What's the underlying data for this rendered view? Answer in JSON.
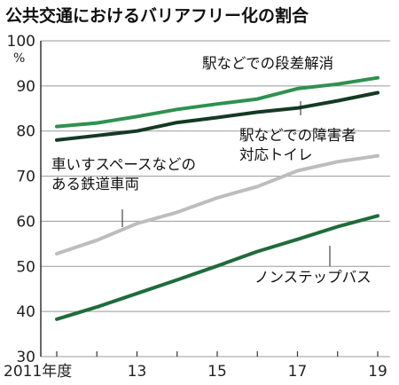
{
  "chart_data": {
    "type": "line",
    "title": "公共交通におけるバリアフリー化の割合",
    "unit_label": "%",
    "ylim": [
      30,
      100
    ],
    "y_ticks": [
      100,
      90,
      80,
      70,
      60,
      50,
      40,
      30
    ],
    "x": [
      2011,
      2012,
      2013,
      2014,
      2015,
      2016,
      2017,
      2018,
      2019
    ],
    "x_tick_labels": [
      {
        "x": 2011,
        "label": "2011年度"
      },
      {
        "x": 2013,
        "label": "13"
      },
      {
        "x": 2015,
        "label": "15"
      },
      {
        "x": 2017,
        "label": "17"
      },
      {
        "x": 2019,
        "label": "19"
      }
    ],
    "grid": true,
    "series": [
      {
        "name": "駅などでの段差解消",
        "label_lines": [
          "駅などでの段差解消"
        ],
        "color": "#2e9150",
        "values": [
          81.0,
          81.8,
          83.2,
          84.8,
          86.0,
          87.1,
          89.4,
          90.4,
          91.8
        ]
      },
      {
        "name": "駅などでの障害者対応トイレ",
        "label_lines": [
          "駅などでの障害者",
          "対応トイレ"
        ],
        "color": "#143a23",
        "values": [
          78.0,
          79.0,
          80.0,
          81.9,
          83.0,
          84.2,
          85.1,
          86.7,
          88.5
        ]
      },
      {
        "name": "車いすスペースなどのある鉄道車両",
        "label_lines": [
          "車いすスペースなどの",
          "ある鉄道車両"
        ],
        "color": "#bdbdbd",
        "values": [
          52.8,
          55.8,
          59.5,
          62.0,
          65.2,
          67.7,
          71.2,
          73.2,
          74.5
        ]
      },
      {
        "name": "ノンステップバス",
        "label_lines": [
          "ノンステップバス"
        ],
        "color": "#1f6b3c",
        "values": [
          38.3,
          41.0,
          44.0,
          47.0,
          50.1,
          53.3,
          56.0,
          58.8,
          61.2
        ]
      }
    ]
  }
}
